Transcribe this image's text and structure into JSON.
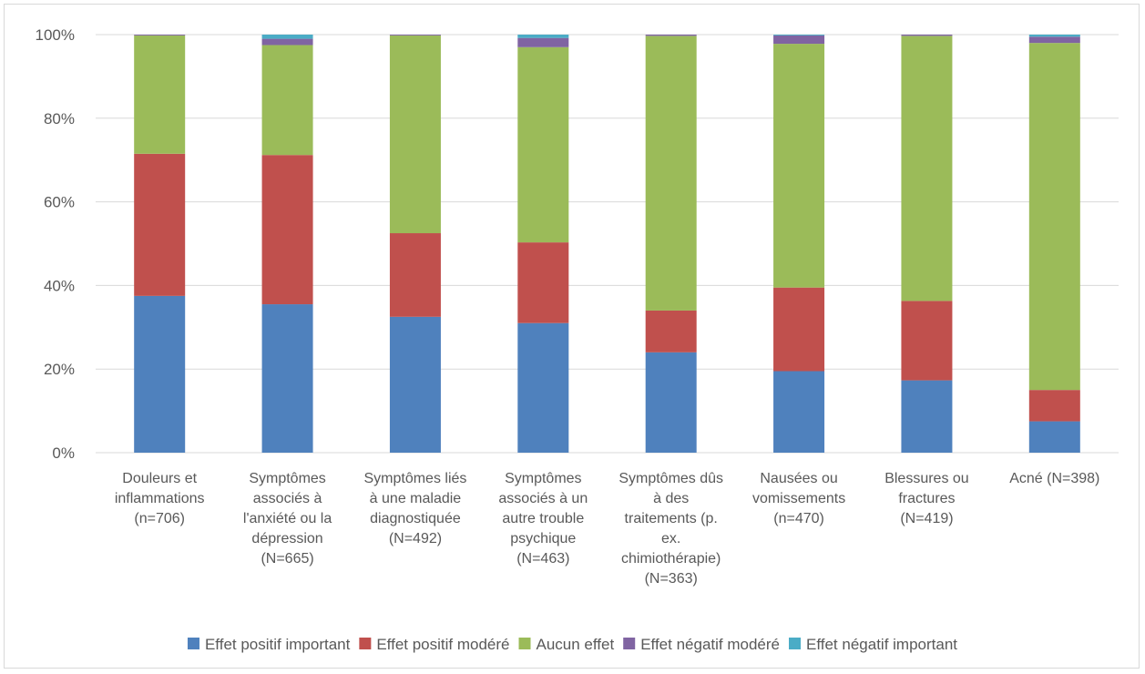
{
  "chart_data": {
    "type": "bar",
    "stacked": true,
    "percent": true,
    "categories": [
      [
        "Douleurs et",
        "inflammations",
        "(n=706)"
      ],
      [
        "Symptômes",
        "associés à",
        "l'anxiété ou la",
        "dépression",
        "(N=665)"
      ],
      [
        "Symptômes liés",
        "à une maladie",
        "diagnostiquée",
        "(N=492)"
      ],
      [
        "Symptômes",
        "associés à un",
        "autre trouble",
        "psychique",
        "(N=463)"
      ],
      [
        "Symptômes dûs",
        "à des",
        "traitements (p.",
        "ex.",
        "chimiothérapie)",
        "(N=363)"
      ],
      [
        "Nausées ou",
        "vomissements",
        "(n=470)"
      ],
      [
        "Blessures ou",
        "fractures",
        "(N=419)"
      ],
      [
        "Acné (N=398)"
      ]
    ],
    "series": [
      {
        "name": "Effet positif important",
        "color": "#4f81bd",
        "values": [
          37.5,
          35.5,
          32.5,
          31.0,
          24.0,
          19.5,
          17.3,
          7.5
        ]
      },
      {
        "name": "Effet positif modéré",
        "color": "#c0504d",
        "values": [
          34.0,
          35.7,
          20.0,
          19.3,
          10.0,
          20.0,
          19.0,
          7.5
        ]
      },
      {
        "name": "Aucun effet",
        "color": "#9bbb59",
        "values": [
          28.3,
          26.3,
          47.3,
          46.7,
          65.7,
          58.3,
          63.4,
          83.0
        ]
      },
      {
        "name": "Effet négatif modéré",
        "color": "#8064a2",
        "values": [
          0.2,
          1.5,
          0.2,
          2.2,
          0.3,
          2.0,
          0.3,
          1.5
        ]
      },
      {
        "name": "Effet négatif important",
        "color": "#4bacc6",
        "values": [
          0.0,
          1.0,
          0.0,
          0.8,
          0.0,
          0.2,
          0.0,
          0.5
        ]
      }
    ],
    "yticks": [
      "0%",
      "20%",
      "40%",
      "60%",
      "80%",
      "100%"
    ],
    "ylim": [
      0,
      100
    ],
    "grid": true,
    "legend_position": "bottom"
  }
}
